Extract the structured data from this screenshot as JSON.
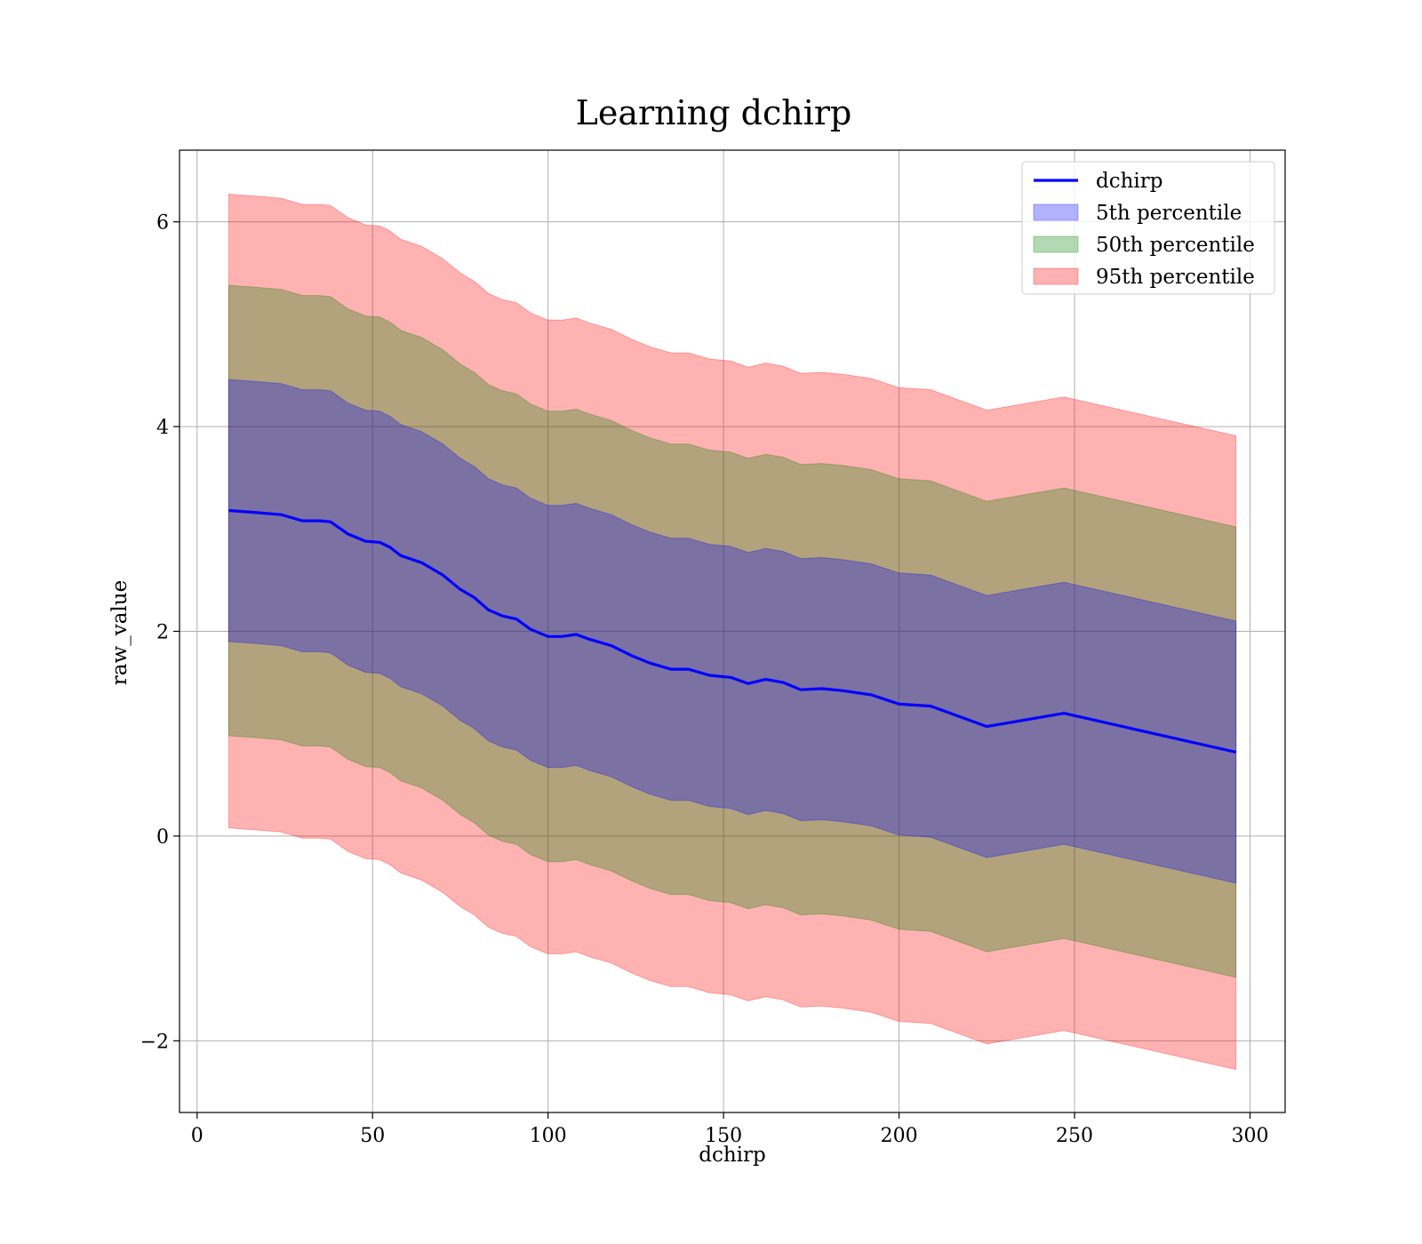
{
  "chart_data": {
    "type": "line",
    "title": "Learning dchirp",
    "xlabel": "dchirp",
    "ylabel": "raw_value",
    "xlim": [
      -5,
      310
    ],
    "ylim": [
      -2.7,
      6.7
    ],
    "xticks": [
      0,
      50,
      100,
      150,
      200,
      250,
      300
    ],
    "yticks": [
      -2,
      0,
      2,
      4,
      6
    ],
    "xtick_labels": [
      "0",
      "50",
      "100",
      "150",
      "200",
      "250",
      "300"
    ],
    "ytick_labels": [
      "−2",
      "0",
      "2",
      "4",
      "6"
    ],
    "grid": true,
    "legend_position": "top-right",
    "colors": {
      "line": "#0000ff",
      "band_5": "#0000ff",
      "band_50": "#008000",
      "band_95": "#ff0000"
    },
    "x": [
      9,
      17,
      24,
      30,
      35,
      38,
      43,
      48,
      52,
      55,
      58,
      64,
      70,
      75,
      79,
      83,
      87,
      91,
      95,
      100,
      104,
      108,
      112,
      118,
      124,
      129,
      135,
      140,
      146,
      152,
      157,
      162,
      167,
      172,
      178,
      184,
      192,
      200,
      209,
      217,
      225,
      247,
      296
    ],
    "series": [
      {
        "name": "dchirp",
        "values": [
          3.18,
          3.16,
          3.14,
          3.08,
          3.08,
          3.07,
          2.95,
          2.88,
          2.87,
          2.82,
          2.74,
          2.67,
          2.55,
          2.41,
          2.33,
          2.21,
          2.15,
          2.12,
          2.02,
          1.95,
          1.95,
          1.97,
          1.92,
          1.86,
          1.76,
          1.69,
          1.63,
          1.63,
          1.57,
          1.55,
          1.49,
          1.53,
          1.5,
          1.43,
          1.44,
          1.42,
          1.38,
          1.29,
          1.27,
          1.17,
          1.07,
          1.2,
          0.82
        ]
      }
    ],
    "bands": [
      {
        "name": "5th percentile",
        "lower": [
          1.9,
          1.88,
          1.86,
          1.8,
          1.8,
          1.79,
          1.67,
          1.6,
          1.59,
          1.54,
          1.46,
          1.39,
          1.27,
          1.13,
          1.05,
          0.93,
          0.87,
          0.84,
          0.74,
          0.67,
          0.67,
          0.69,
          0.64,
          0.58,
          0.48,
          0.41,
          0.35,
          0.35,
          0.29,
          0.27,
          0.21,
          0.25,
          0.22,
          0.15,
          0.16,
          0.14,
          0.1,
          0.01,
          -0.01,
          -0.11,
          -0.21,
          -0.08,
          -0.46
        ],
        "upper": [
          4.46,
          4.44,
          4.42,
          4.36,
          4.36,
          4.35,
          4.23,
          4.16,
          4.15,
          4.1,
          4.02,
          3.95,
          3.83,
          3.69,
          3.61,
          3.49,
          3.43,
          3.4,
          3.3,
          3.23,
          3.23,
          3.25,
          3.2,
          3.14,
          3.04,
          2.97,
          2.91,
          2.91,
          2.85,
          2.83,
          2.77,
          2.81,
          2.78,
          2.71,
          2.72,
          2.7,
          2.66,
          2.57,
          2.55,
          2.45,
          2.35,
          2.48,
          2.1
        ]
      },
      {
        "name": "50th percentile",
        "lower": [
          0.98,
          0.96,
          0.94,
          0.88,
          0.88,
          0.87,
          0.75,
          0.68,
          0.67,
          0.62,
          0.54,
          0.47,
          0.35,
          0.21,
          0.13,
          0.01,
          -0.05,
          -0.08,
          -0.18,
          -0.25,
          -0.25,
          -0.23,
          -0.28,
          -0.34,
          -0.44,
          -0.51,
          -0.57,
          -0.57,
          -0.63,
          -0.65,
          -0.71,
          -0.67,
          -0.7,
          -0.77,
          -0.76,
          -0.78,
          -0.82,
          -0.91,
          -0.93,
          -1.03,
          -1.13,
          -1.0,
          -1.38
        ],
        "upper": [
          5.38,
          5.36,
          5.34,
          5.28,
          5.28,
          5.27,
          5.15,
          5.08,
          5.07,
          5.02,
          4.94,
          4.87,
          4.75,
          4.61,
          4.53,
          4.41,
          4.35,
          4.32,
          4.22,
          4.15,
          4.15,
          4.17,
          4.12,
          4.06,
          3.96,
          3.89,
          3.83,
          3.83,
          3.77,
          3.75,
          3.69,
          3.73,
          3.7,
          3.63,
          3.64,
          3.62,
          3.58,
          3.49,
          3.47,
          3.37,
          3.27,
          3.4,
          3.02
        ]
      },
      {
        "name": "95th percentile",
        "lower": [
          0.08,
          0.06,
          0.04,
          -0.02,
          -0.02,
          -0.03,
          -0.15,
          -0.22,
          -0.23,
          -0.28,
          -0.36,
          -0.43,
          -0.55,
          -0.69,
          -0.77,
          -0.89,
          -0.95,
          -0.98,
          -1.08,
          -1.15,
          -1.15,
          -1.13,
          -1.18,
          -1.24,
          -1.34,
          -1.41,
          -1.47,
          -1.47,
          -1.53,
          -1.55,
          -1.61,
          -1.57,
          -1.6,
          -1.67,
          -1.66,
          -1.68,
          -1.72,
          -1.81,
          -1.83,
          -1.93,
          -2.03,
          -1.9,
          -2.28
        ],
        "upper": [
          6.27,
          6.25,
          6.23,
          6.17,
          6.17,
          6.16,
          6.04,
          5.97,
          5.96,
          5.91,
          5.83,
          5.76,
          5.64,
          5.5,
          5.42,
          5.3,
          5.24,
          5.21,
          5.11,
          5.04,
          5.04,
          5.06,
          5.01,
          4.95,
          4.85,
          4.78,
          4.72,
          4.72,
          4.66,
          4.64,
          4.58,
          4.62,
          4.59,
          4.52,
          4.53,
          4.51,
          4.47,
          4.38,
          4.36,
          4.26,
          4.16,
          4.29,
          3.91
        ]
      }
    ]
  }
}
